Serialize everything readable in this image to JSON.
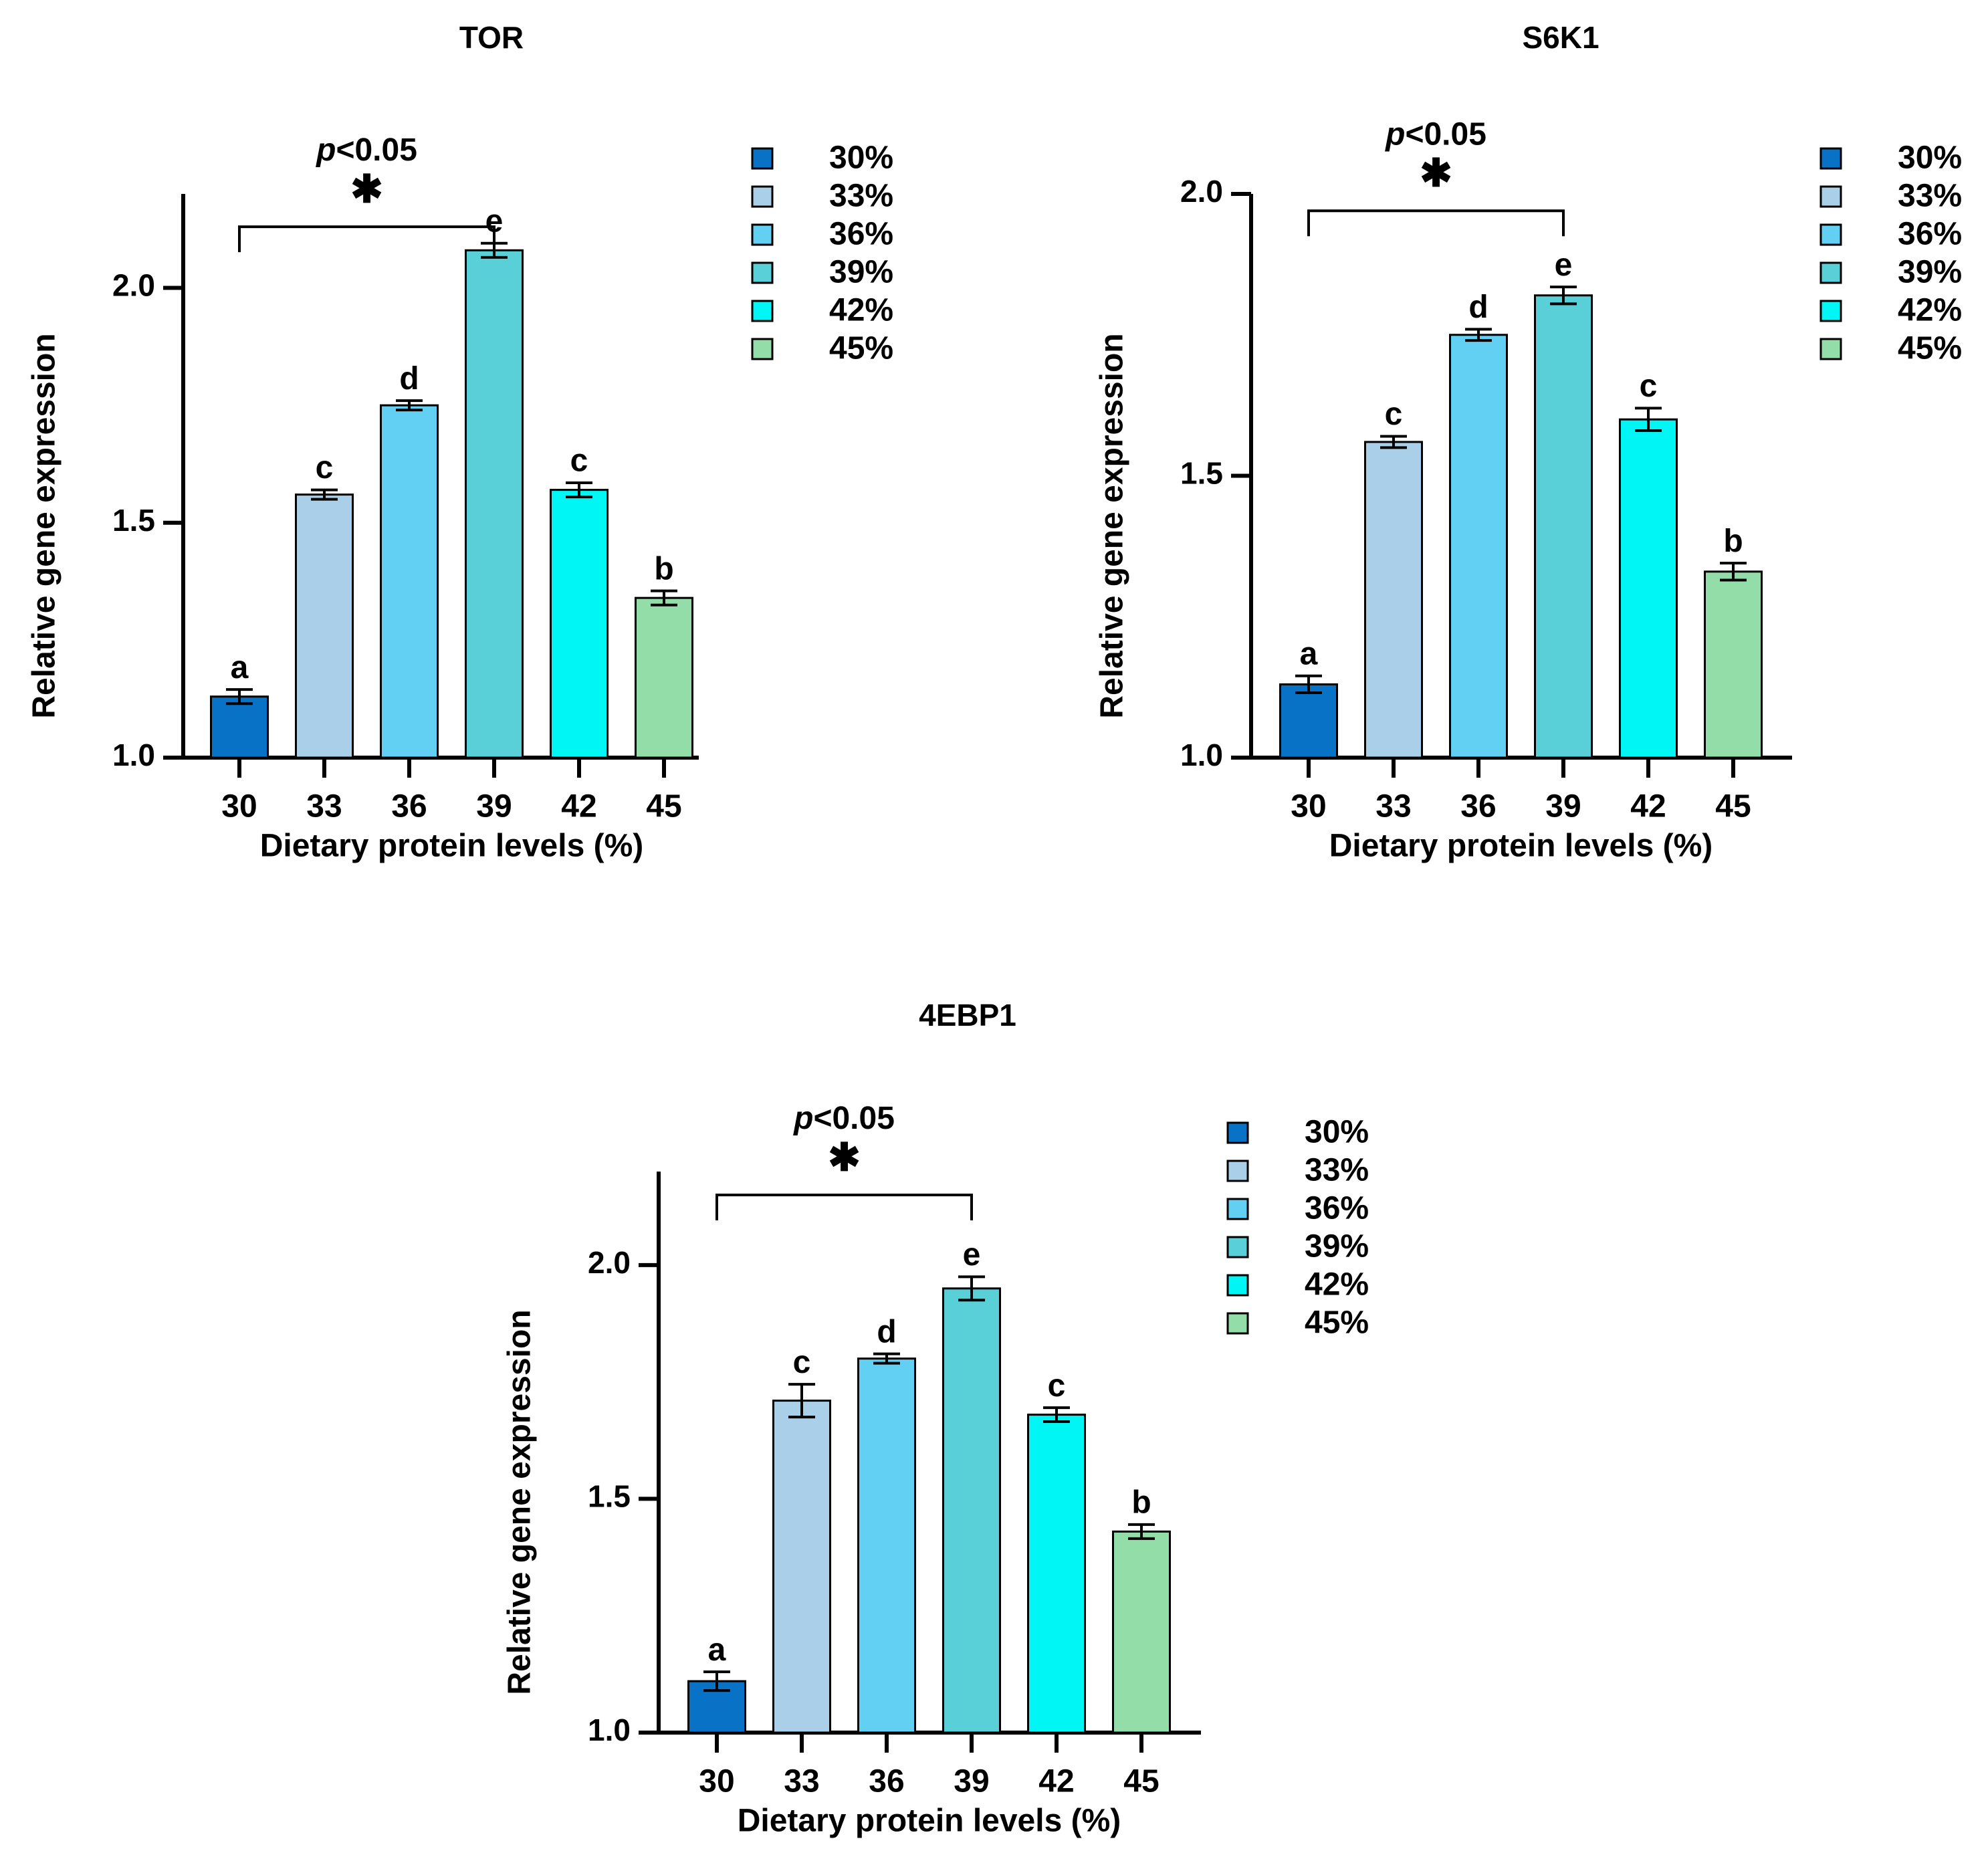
{
  "chart_data": [
    {
      "type": "bar",
      "title": "TOR",
      "xlabel": "Dietary protein levels (%)",
      "ylabel": "Relative gene expression",
      "categories": [
        "30",
        "33",
        "36",
        "39",
        "42",
        "45"
      ],
      "values": [
        1.13,
        1.56,
        1.75,
        2.08,
        1.57,
        1.34
      ],
      "errors": [
        0.015,
        0.01,
        0.01,
        0.015,
        0.015,
        0.015
      ],
      "letters": [
        "a",
        "c",
        "d",
        "e",
        "c",
        "b"
      ],
      "ylim": [
        1.0,
        2.2
      ],
      "yticks": [
        "1.0",
        "1.5",
        "2.0"
      ],
      "legend": [
        "30%",
        "33%",
        "36%",
        "39%",
        "42%",
        "45%"
      ],
      "colors": [
        "#0873c6",
        "#a9cfe9",
        "#62d0f3",
        "#59cfd8",
        "#00f5f5",
        "#93dea8"
      ],
      "significance": {
        "p_label": "p",
        "p_text": "<0.05",
        "star": "✱",
        "from_index": 0,
        "to_index": 3,
        "bracket_value": 2.13
      },
      "legend_position": "right"
    },
    {
      "type": "bar",
      "title": "S6K1",
      "xlabel": "Dietary protein levels (%)",
      "ylabel": "Relative gene expression",
      "categories": [
        "30",
        "33",
        "36",
        "39",
        "42",
        "45"
      ],
      "values": [
        1.13,
        1.56,
        1.75,
        1.82,
        1.6,
        1.33
      ],
      "errors": [
        0.015,
        0.01,
        0.01,
        0.015,
        0.02,
        0.015
      ],
      "letters": [
        "a",
        "c",
        "d",
        "e",
        "c",
        "b"
      ],
      "ylim": [
        1.0,
        2.0
      ],
      "yticks": [
        "1.0",
        "1.5",
        "2.0"
      ],
      "legend": [
        "30%",
        "33%",
        "36%",
        "39%",
        "42%",
        "45%"
      ],
      "colors": [
        "#0873c6",
        "#a9cfe9",
        "#62d0f3",
        "#59cfd8",
        "#00f5f5",
        "#93dea8"
      ],
      "significance": {
        "p_label": "p",
        "p_text": "<0.05",
        "star": "✱",
        "from_index": 0,
        "to_index": 3,
        "bracket_value": 1.97
      },
      "legend_position": "right"
    },
    {
      "type": "bar",
      "title": "4EBP1",
      "xlabel": "Dietary protein levels (%)",
      "ylabel": "Relative gene expression",
      "categories": [
        "30",
        "33",
        "36",
        "39",
        "42",
        "45"
      ],
      "values": [
        1.11,
        1.71,
        1.8,
        1.95,
        1.68,
        1.43
      ],
      "errors": [
        0.02,
        0.035,
        0.01,
        0.025,
        0.015,
        0.015
      ],
      "letters": [
        "a",
        "c",
        "d",
        "e",
        "c",
        "b"
      ],
      "ylim": [
        1.0,
        2.2
      ],
      "yticks": [
        "1.0",
        "1.5",
        "2.0"
      ],
      "legend": [
        "30%",
        "33%",
        "36%",
        "39%",
        "42%",
        "45%"
      ],
      "colors": [
        "#0873c6",
        "#a9cfe9",
        "#62d0f3",
        "#59cfd8",
        "#00f5f5",
        "#93dea8"
      ],
      "significance": {
        "p_label": "p",
        "p_text": "<0.05",
        "star": "✱",
        "from_index": 0,
        "to_index": 3,
        "bracket_value": 2.15
      },
      "legend_position": "right"
    }
  ]
}
